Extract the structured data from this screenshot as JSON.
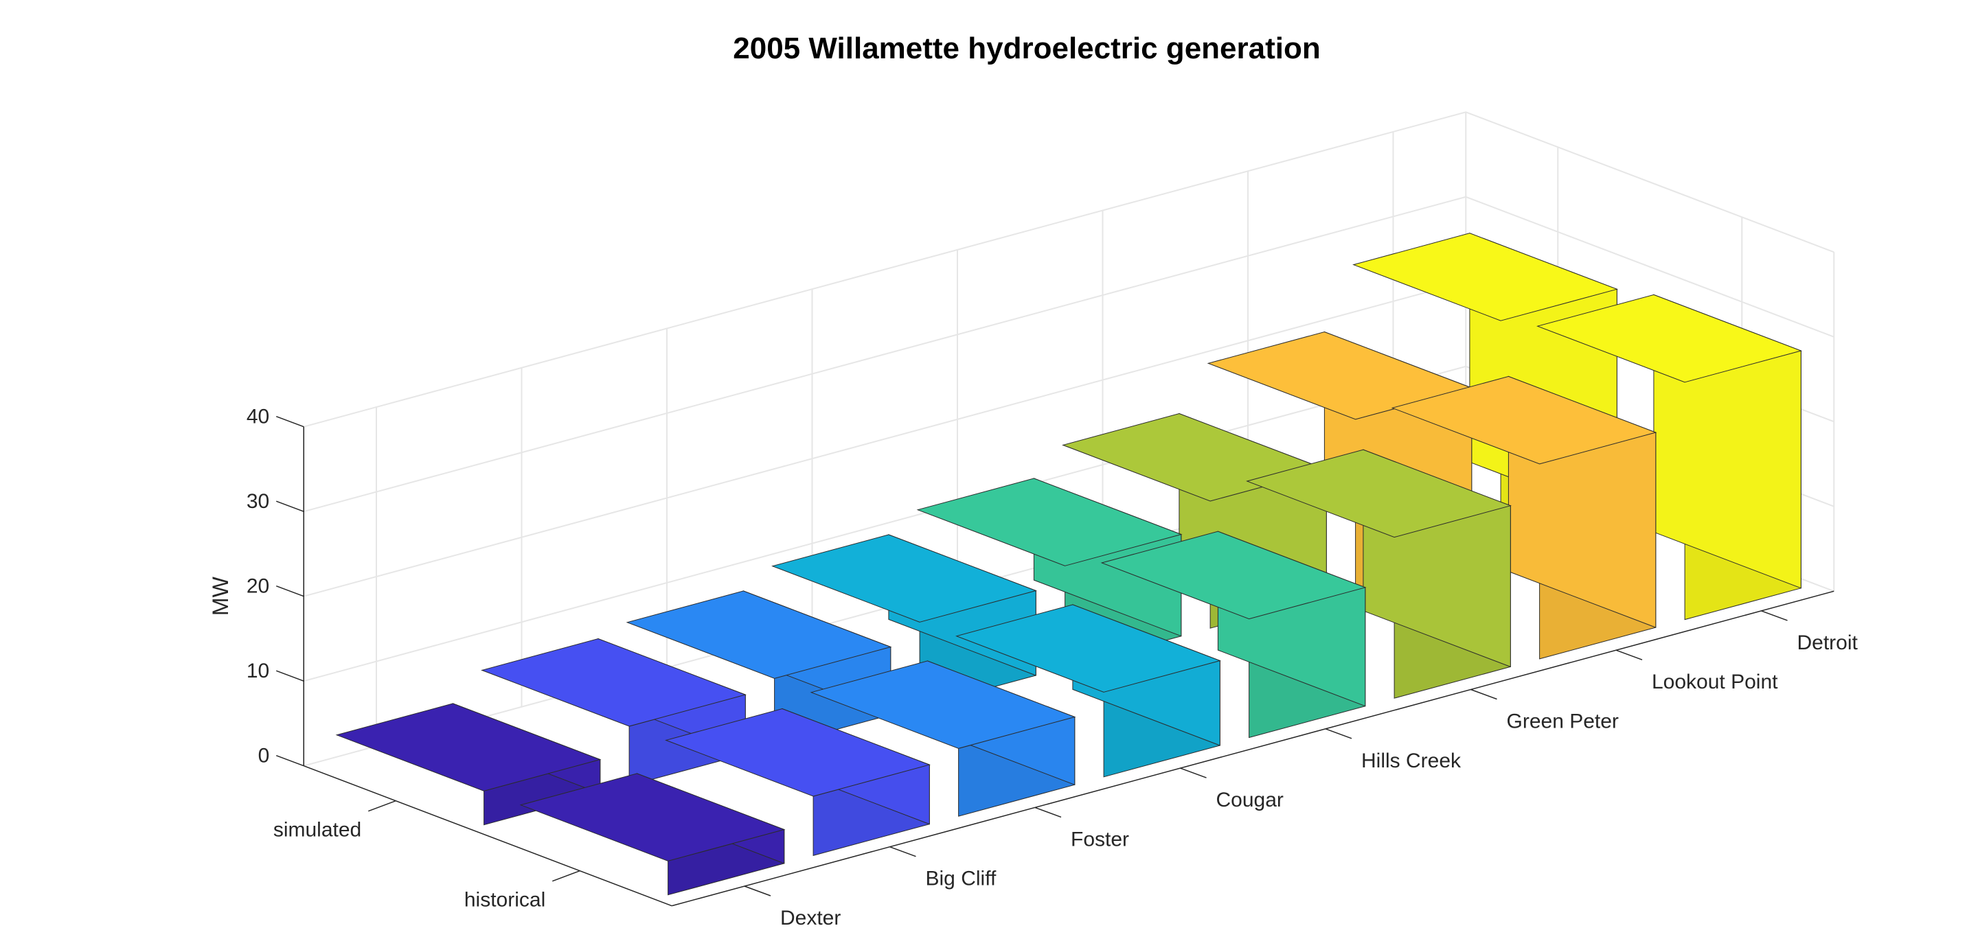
{
  "chart_data": {
    "type": "bar",
    "title": "2005 Willamette hydroelectric generation",
    "ylabel": "MW",
    "zlim": [
      0,
      40
    ],
    "zticks": [
      0,
      10,
      20,
      30,
      40
    ],
    "grid": true,
    "categories": [
      "Dexter",
      "Big Cliff",
      "Foster",
      "Cougar",
      "Hills Creek",
      "Green Peter",
      "Lookout Point",
      "Detroit"
    ],
    "series": [
      {
        "name": "historical",
        "values": [
          4,
          7,
          8,
          10,
          14,
          19,
          23,
          28
        ]
      },
      {
        "name": "simulated",
        "values": [
          4,
          7,
          8,
          10,
          12,
          15,
          20,
          27
        ]
      }
    ],
    "colors": [
      "#3a22b0",
      "#4650f2",
      "#2a88f3",
      "#12b0d8",
      "#37c89a",
      "#acc83a",
      "#fdbf3a",
      "#f8f818"
    ],
    "axis_color": "#262626",
    "grid_color": "#e6e6e6"
  }
}
